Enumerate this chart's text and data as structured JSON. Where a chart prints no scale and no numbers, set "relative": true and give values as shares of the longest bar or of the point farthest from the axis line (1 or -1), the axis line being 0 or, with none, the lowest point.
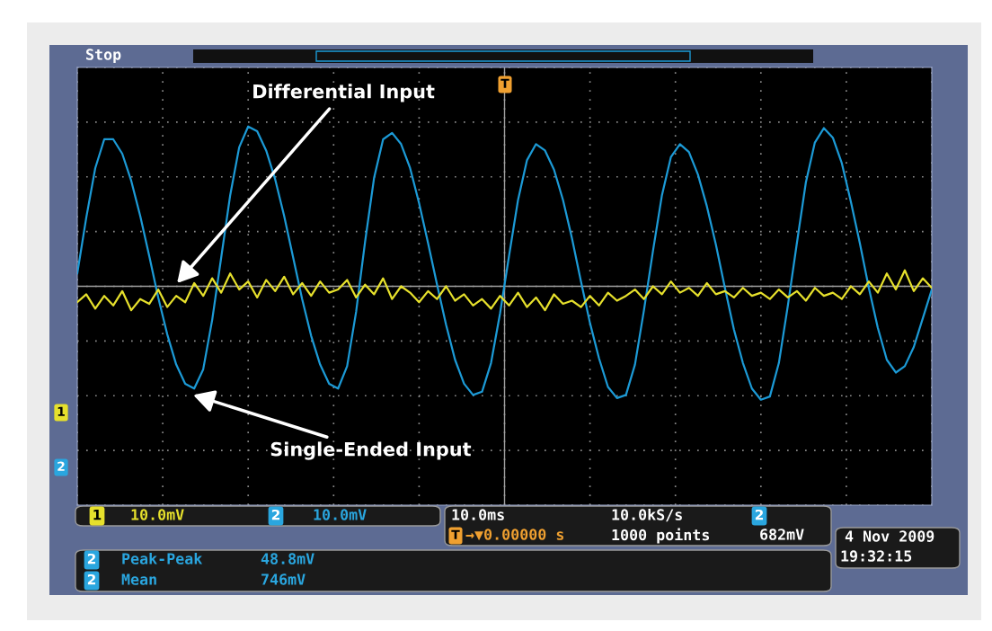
{
  "chart_data": {
    "type": "line",
    "relative": true,
    "grid": true,
    "tick_labels": false,
    "marker": "none",
    "line_style": "solid",
    "categories": [
      null,
      null,
      null,
      null,
      null,
      null,
      null,
      null,
      null,
      null,
      null,
      null,
      null,
      null,
      null,
      null,
      null,
      null,
      null,
      null,
      null,
      null,
      null,
      null,
      null,
      null,
      null,
      null,
      null,
      null,
      null,
      null,
      null,
      null,
      null,
      null,
      null,
      null,
      null,
      null,
      null,
      null,
      null,
      null,
      null,
      null,
      null,
      null,
      null,
      null,
      null,
      null,
      null,
      null,
      null,
      null,
      null,
      null,
      null,
      null,
      null,
      null,
      null,
      null,
      null,
      null,
      null,
      null,
      null,
      null,
      null,
      null,
      null,
      null,
      null,
      null,
      null,
      null,
      null,
      null,
      null,
      null,
      null,
      null,
      null,
      null,
      null,
      null,
      null,
      null,
      null,
      null,
      null,
      null,
      null,
      null
    ],
    "series": [
      {
        "name": "Single-Ended Input",
        "color": "#1c9ad6",
        "values": [
          0.08,
          0.43,
          0.74,
          0.92,
          0.92,
          0.83,
          0.66,
          0.44,
          0.19,
          -0.07,
          -0.3,
          -0.49,
          -0.61,
          -0.64,
          -0.52,
          -0.21,
          0.18,
          0.57,
          0.87,
          1.0,
          0.97,
          0.85,
          0.67,
          0.44,
          0.18,
          -0.08,
          -0.31,
          -0.49,
          -0.61,
          -0.64,
          -0.5,
          -0.16,
          0.28,
          0.68,
          0.92,
          0.96,
          0.89,
          0.74,
          0.52,
          0.27,
          0.01,
          -0.24,
          -0.46,
          -0.61,
          -0.68,
          -0.66,
          -0.48,
          -0.17,
          0.19,
          0.54,
          0.79,
          0.89,
          0.85,
          0.73,
          0.54,
          0.3,
          0.03,
          -0.23,
          -0.45,
          -0.63,
          -0.7,
          -0.68,
          -0.49,
          -0.15,
          0.22,
          0.57,
          0.81,
          0.89,
          0.84,
          0.7,
          0.5,
          0.26,
          -0.01,
          -0.27,
          -0.48,
          -0.64,
          -0.71,
          -0.69,
          -0.48,
          -0.12,
          0.27,
          0.65,
          0.9,
          0.99,
          0.93,
          0.77,
          0.53,
          0.27,
          -0.01,
          -0.26,
          -0.46,
          -0.54,
          -0.5,
          -0.38,
          -0.2,
          -0.02
        ]
      },
      {
        "name": "Differential Input",
        "color": "#e6e02c",
        "values": [
          -0.1,
          -0.05,
          -0.14,
          -0.06,
          -0.12,
          -0.03,
          -0.15,
          -0.08,
          -0.11,
          -0.02,
          -0.13,
          -0.06,
          -0.1,
          0.02,
          -0.06,
          0.05,
          -0.04,
          0.08,
          -0.02,
          0.03,
          -0.07,
          0.04,
          -0.03,
          0.06,
          -0.05,
          0.02,
          -0.06,
          0.03,
          -0.04,
          -0.02,
          0.04,
          -0.07,
          0.01,
          -0.05,
          0.05,
          -0.08,
          0.0,
          -0.04,
          -0.1,
          -0.03,
          -0.08,
          0.0,
          -0.09,
          -0.05,
          -0.12,
          -0.08,
          -0.14,
          -0.06,
          -0.12,
          -0.04,
          -0.13,
          -0.07,
          -0.15,
          -0.05,
          -0.11,
          -0.09,
          -0.13,
          -0.06,
          -0.12,
          -0.04,
          -0.09,
          -0.06,
          -0.02,
          -0.08,
          0.0,
          -0.05,
          0.03,
          -0.04,
          -0.01,
          -0.06,
          0.02,
          -0.05,
          -0.03,
          -0.07,
          -0.01,
          -0.06,
          -0.04,
          -0.08,
          -0.02,
          -0.07,
          -0.03,
          -0.09,
          -0.01,
          -0.06,
          -0.04,
          -0.08,
          0.0,
          -0.05,
          0.03,
          -0.04,
          0.08,
          -0.02,
          0.1,
          -0.03,
          0.05,
          -0.01
        ]
      }
    ],
    "annotations": [
      "Stop",
      "1",
      "10.0mV",
      "2",
      "10.0mV",
      "10.0ms",
      "10.0kS/s",
      "2",
      "T",
      "→▼0.00000 s",
      "1000 points",
      "682mV",
      "4 Nov 2009",
      "19:32:15",
      "2",
      "Peak-Peak",
      "48.8mV",
      "2",
      "Mean",
      "746mV",
      "T",
      "1",
      "2"
    ]
  }
}
